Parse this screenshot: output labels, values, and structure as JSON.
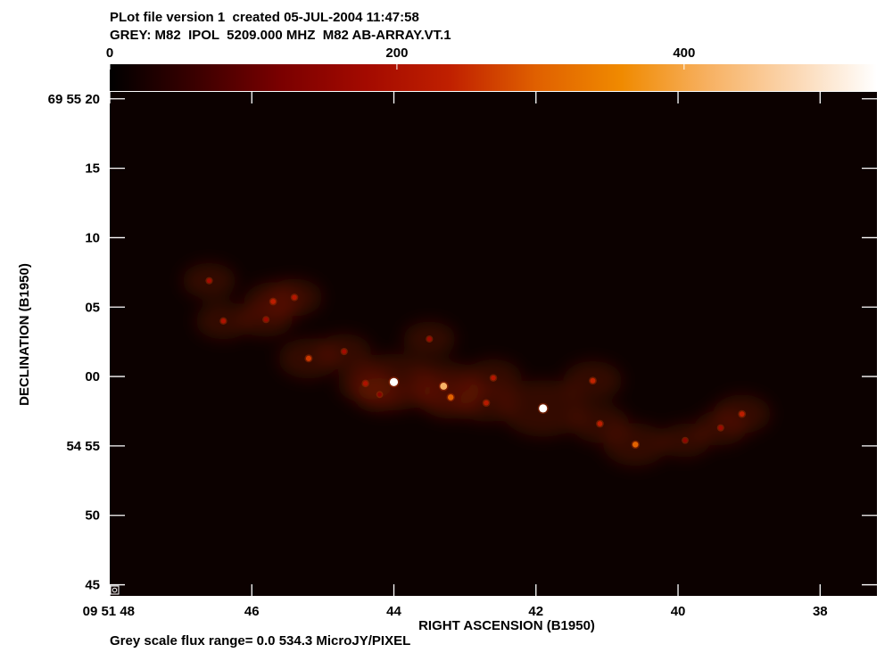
{
  "header": {
    "line1": "PLot file version 1  created 05-JUL-2004 11:47:58",
    "line2": "GREY: M82  IPOL  5209.000 MHZ  M82 AB-ARRAY.VT.1"
  },
  "footer": "Grey scale flux range= 0.0 534.3 MicroJY/PIXEL",
  "colorbar": {
    "ticks": [
      "0",
      "200",
      "400"
    ],
    "tick_values": [
      0,
      200,
      400
    ],
    "range": [
      0.0,
      534.3
    ],
    "colors": [
      "#000000",
      "#3a0000",
      "#7a0000",
      "#a30a00",
      "#c02000",
      "#e06000",
      "#f08a00",
      "#f7b060",
      "#fbd6b0",
      "#ffffff"
    ]
  },
  "chart_data": {
    "type": "heatmap",
    "title": "GREY: M82  IPOL  5209.000 MHZ  M82 AB-ARRAY.VT.1",
    "xlabel": "RIGHT ASCENSION (B1950)",
    "ylabel": "DECLINATION (B1950)",
    "x_ticks": [
      "09 51 48",
      "46",
      "44",
      "42",
      "40",
      "38"
    ],
    "x_tick_values_s": [
      48,
      46,
      44,
      42,
      40,
      38
    ],
    "y_ticks": [
      "69 55 20",
      "15",
      "10",
      "05",
      "00",
      "54 55",
      "50",
      "45"
    ],
    "y_tick_values_arcsec": [
      80,
      75,
      70,
      65,
      60,
      55,
      50,
      45
    ],
    "xlim_s": [
      48.0,
      37.2
    ],
    "ylim_arcsec": [
      44.2,
      80.5
    ],
    "zlim": [
      0.0,
      534.3
    ],
    "zunit": "MicroJY/PIXEL",
    "sources": [
      {
        "ra_s": 46.6,
        "dec": 66.9,
        "flux": 180
      },
      {
        "ra_s": 46.4,
        "dec": 64.0,
        "flux": 200
      },
      {
        "ra_s": 45.8,
        "dec": 64.1,
        "flux": 170
      },
      {
        "ra_s": 45.7,
        "dec": 65.4,
        "flux": 230
      },
      {
        "ra_s": 45.4,
        "dec": 65.7,
        "flux": 210
      },
      {
        "ra_s": 45.2,
        "dec": 61.3,
        "flux": 260
      },
      {
        "ra_s": 44.7,
        "dec": 61.8,
        "flux": 180
      },
      {
        "ra_s": 44.4,
        "dec": 59.5,
        "flux": 200
      },
      {
        "ra_s": 44.0,
        "dec": 59.6,
        "flux": 534
      },
      {
        "ra_s": 43.3,
        "dec": 59.3,
        "flux": 420
      },
      {
        "ra_s": 43.2,
        "dec": 58.5,
        "flux": 300
      },
      {
        "ra_s": 42.7,
        "dec": 58.1,
        "flux": 220
      },
      {
        "ra_s": 42.6,
        "dec": 59.9,
        "flux": 210
      },
      {
        "ra_s": 41.9,
        "dec": 57.7,
        "flux": 534
      },
      {
        "ra_s": 41.2,
        "dec": 59.7,
        "flux": 240
      },
      {
        "ra_s": 41.1,
        "dec": 56.6,
        "flux": 230
      },
      {
        "ra_s": 40.6,
        "dec": 55.1,
        "flux": 300
      },
      {
        "ra_s": 39.9,
        "dec": 55.4,
        "flux": 150
      },
      {
        "ra_s": 39.4,
        "dec": 56.3,
        "flux": 170
      },
      {
        "ra_s": 39.1,
        "dec": 57.3,
        "flux": 230
      },
      {
        "ra_s": 44.2,
        "dec": 58.7,
        "flux": 140
      },
      {
        "ra_s": 43.5,
        "dec": 62.7,
        "flux": 170
      }
    ]
  }
}
